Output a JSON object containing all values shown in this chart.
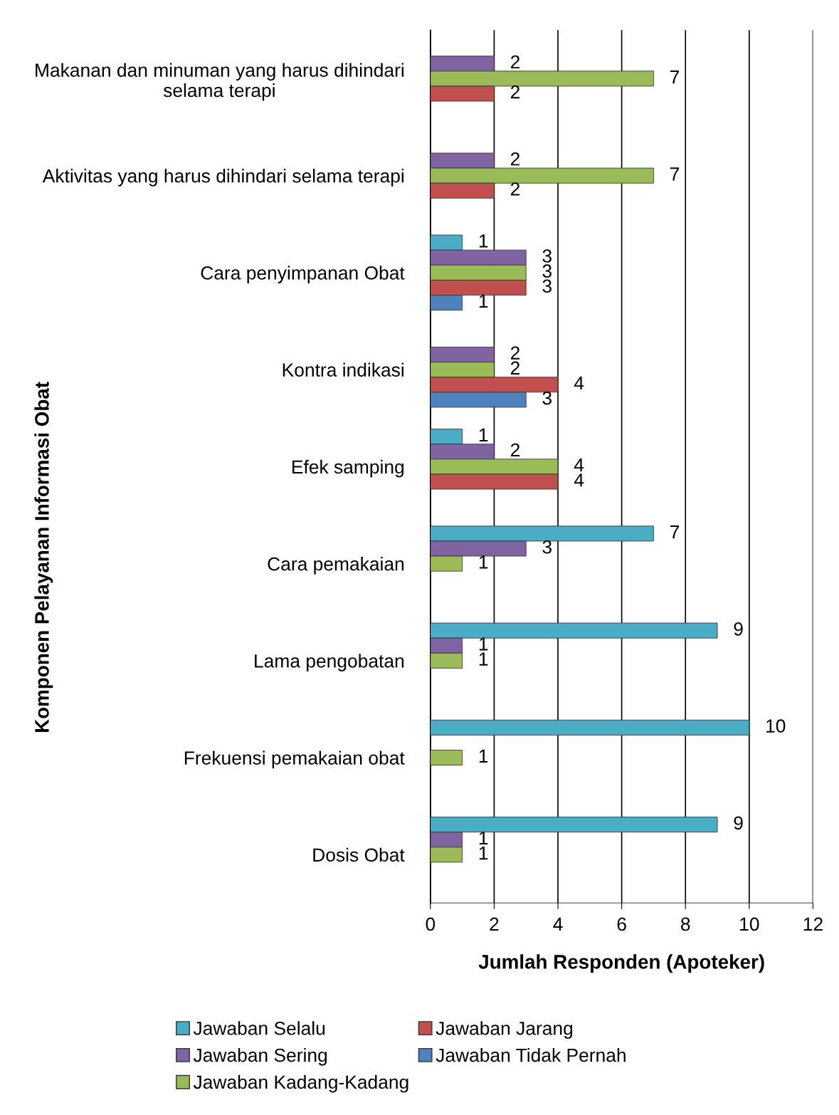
{
  "chart_data": {
    "type": "bar",
    "orientation": "horizontal",
    "xlabel": "Jumlah Responden (Apoteker)",
    "ylabel": "Komponen Pelayanan Informasi Obat",
    "categories": [
      "Makanan dan minuman yang harus dihindari selama terapi",
      "Aktivitas yang harus dihindari selama terapi",
      "Cara penyimpanan Obat",
      "Kontra indikasi",
      "Efek samping",
      "Cara pemakaian",
      "Lama pengobatan",
      "Frekuensi pemakaian obat",
      "Dosis Obat"
    ],
    "series": [
      {
        "name": "Jawaban Selalu",
        "color": "#4bacc6",
        "values": [
          null,
          null,
          1,
          null,
          1,
          7,
          9,
          10,
          9
        ]
      },
      {
        "name": "Jawaban Sering",
        "color": "#8064a2",
        "values": [
          2,
          2,
          3,
          2,
          2,
          3,
          1,
          null,
          1
        ]
      },
      {
        "name": "Jawaban Kadang-Kadang",
        "color": "#9bbb59",
        "values": [
          7,
          7,
          3,
          2,
          4,
          1,
          1,
          1,
          1
        ]
      },
      {
        "name": "Jawaban Jarang",
        "color": "#c0504d",
        "values": [
          2,
          2,
          3,
          4,
          4,
          null,
          null,
          null,
          null
        ]
      },
      {
        "name": "Jawaban Tidak Pernah",
        "color": "#4f81bd",
        "values": [
          null,
          null,
          1,
          3,
          null,
          null,
          null,
          null,
          null
        ]
      }
    ],
    "xlim": [
      0,
      12
    ],
    "xticks": [
      0,
      2,
      4,
      6,
      8,
      10,
      12
    ],
    "grid": "x",
    "legend": "bottom",
    "data_labels": true
  }
}
